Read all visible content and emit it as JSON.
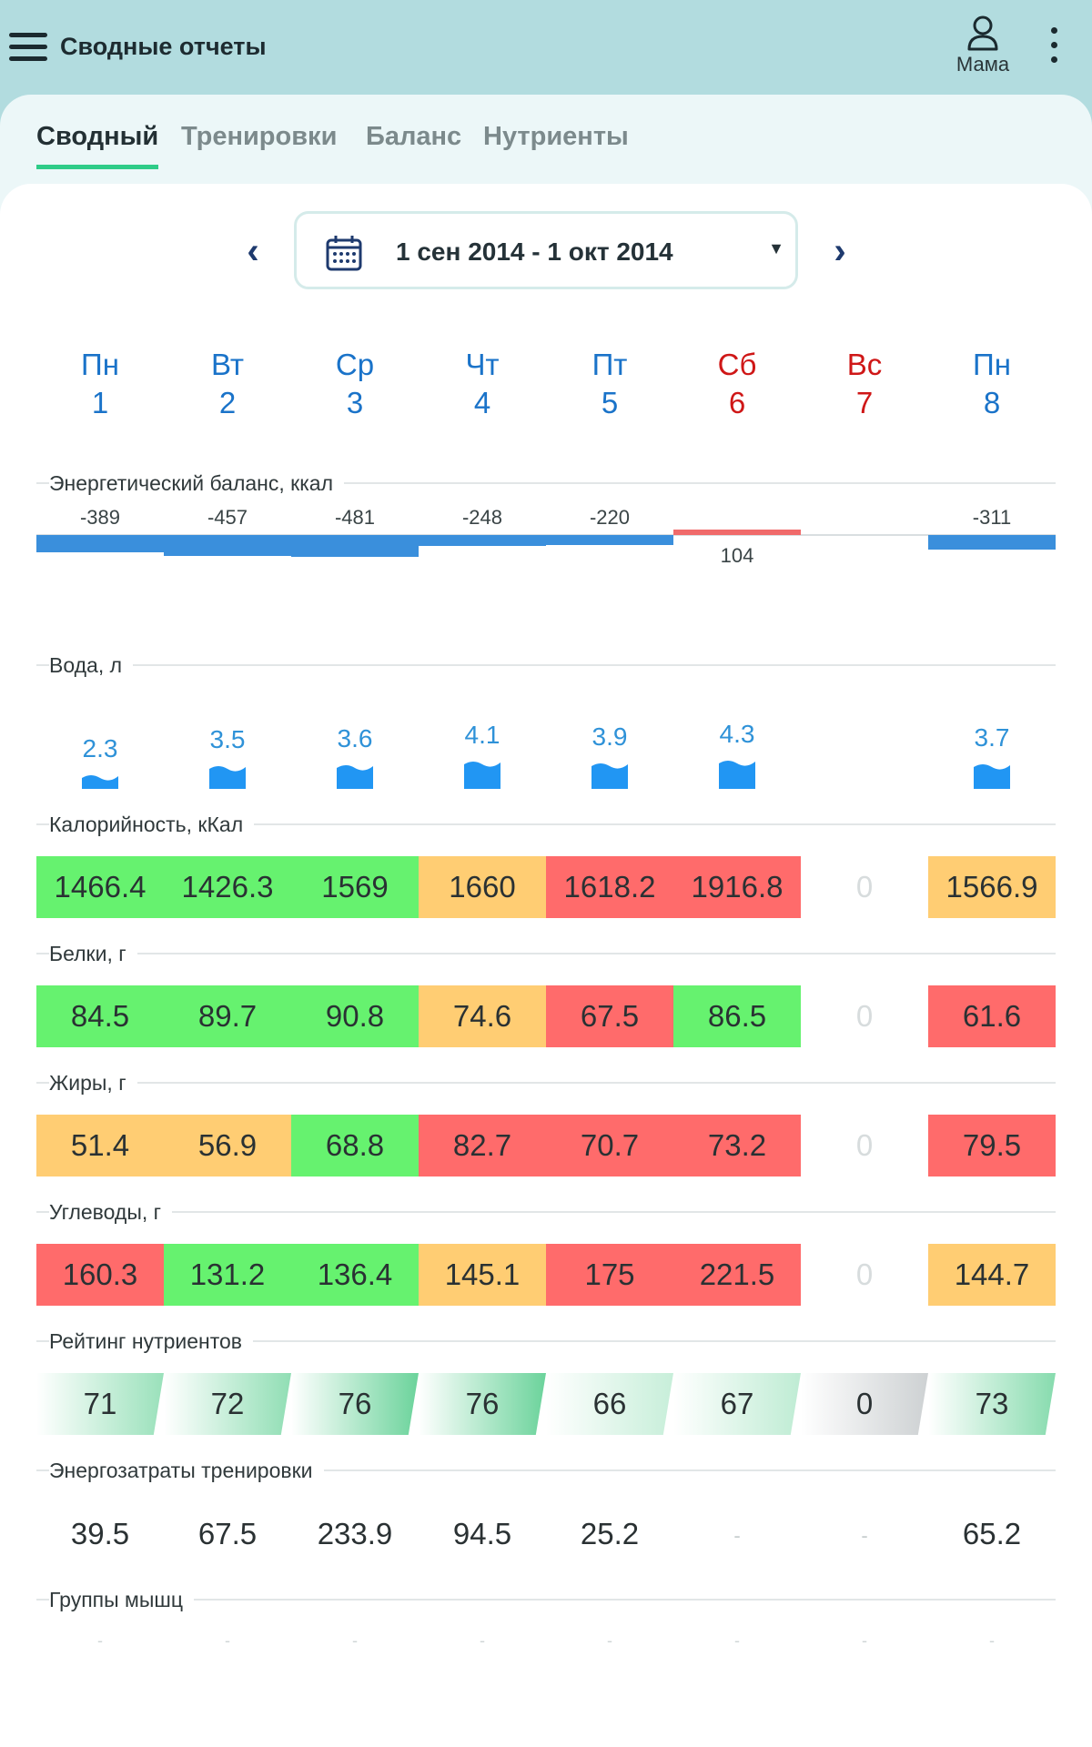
{
  "app": {
    "title": "Сводные отчеты",
    "profile_name": "Мама",
    "menu_icon": "hamburger-icon",
    "profile_icon": "user-icon",
    "more_icon": "kebab-icon"
  },
  "tabs": [
    {
      "label": "Сводный",
      "active": true
    },
    {
      "label": "Тренировки",
      "active": false
    },
    {
      "label": "Баланс",
      "active": false
    },
    {
      "label": "Нутриенты",
      "active": false
    }
  ],
  "date_range": {
    "label": "1 сен 2014 - 1 окт 2014",
    "prev_icon": "chevron-left-icon",
    "next_icon": "chevron-right-icon",
    "calendar_icon": "calendar-icon",
    "dropdown_icon": "dropdown-caret"
  },
  "colors": {
    "weekday": "#1a73c9",
    "weekend": "#cf1717",
    "green": "#66f26f",
    "orange": "#ffcd73",
    "red": "#ff6b6b",
    "balance_neg": "#3a8fdc",
    "balance_pos": "#f06a6a",
    "water": "#2196f3"
  },
  "days": [
    {
      "name": "Пн",
      "num": "1",
      "weekend": false
    },
    {
      "name": "Вт",
      "num": "2",
      "weekend": false
    },
    {
      "name": "Ср",
      "num": "3",
      "weekend": false
    },
    {
      "name": "Чт",
      "num": "4",
      "weekend": false
    },
    {
      "name": "Пт",
      "num": "5",
      "weekend": false
    },
    {
      "name": "Сб",
      "num": "6",
      "weekend": true
    },
    {
      "name": "Вс",
      "num": "7",
      "weekend": true
    },
    {
      "name": "Пн",
      "num": "8",
      "weekend": false
    }
  ],
  "energy_balance": {
    "label": "Энергетический баланс, ккал",
    "values": [
      -389,
      -457,
      -481,
      -248,
      -220,
      104,
      null,
      -311
    ],
    "labels": [
      "-389",
      "-457",
      "-481",
      "-248",
      "-220",
      "104",
      "",
      "-311"
    ]
  },
  "water": {
    "label": "Вода, л",
    "values": [
      2.3,
      3.5,
      3.6,
      4.1,
      3.9,
      4.3,
      null,
      3.7
    ],
    "labels": [
      "2.3",
      "3.5",
      "3.6",
      "4.1",
      "3.9",
      "4.3",
      "",
      "3.7"
    ]
  },
  "calories": {
    "label": "Калорийность, кКал",
    "values": [
      "1466.4",
      "1426.3",
      "1569",
      "1660",
      "1618.2",
      "1916.8",
      "0",
      "1566.9"
    ],
    "status": [
      "green",
      "green",
      "green",
      "orange",
      "red",
      "red",
      "none",
      "orange"
    ]
  },
  "protein": {
    "label": "Белки, г",
    "values": [
      "84.5",
      "89.7",
      "90.8",
      "74.6",
      "67.5",
      "86.5",
      "0",
      "61.6"
    ],
    "status": [
      "green",
      "green",
      "green",
      "orange",
      "red",
      "green",
      "none",
      "red"
    ]
  },
  "fat": {
    "label": "Жиры, г",
    "values": [
      "51.4",
      "56.9",
      "68.8",
      "82.7",
      "70.7",
      "73.2",
      "0",
      "79.5"
    ],
    "status": [
      "orange",
      "orange",
      "green",
      "red",
      "red",
      "red",
      "none",
      "red"
    ]
  },
  "carbs": {
    "label": "Углеводы, г",
    "values": [
      "160.3",
      "131.2",
      "136.4",
      "145.1",
      "175",
      "221.5",
      "0",
      "144.7"
    ],
    "status": [
      "red",
      "green",
      "green",
      "orange",
      "red",
      "red",
      "none",
      "orange"
    ]
  },
  "nutrient_rating": {
    "label": "Рейтинг нутриентов",
    "values": [
      71,
      72,
      76,
      76,
      66,
      67,
      0,
      73
    ]
  },
  "training_energy": {
    "label": "Энергозатраты тренировки",
    "values": [
      "39.5",
      "67.5",
      "233.9",
      "94.5",
      "25.2",
      "-",
      "-",
      "65.2"
    ]
  },
  "muscle_groups": {
    "label": "Группы мышц",
    "values": [
      "-",
      "-",
      "-",
      "-",
      "-",
      "-",
      "-",
      "-"
    ]
  }
}
